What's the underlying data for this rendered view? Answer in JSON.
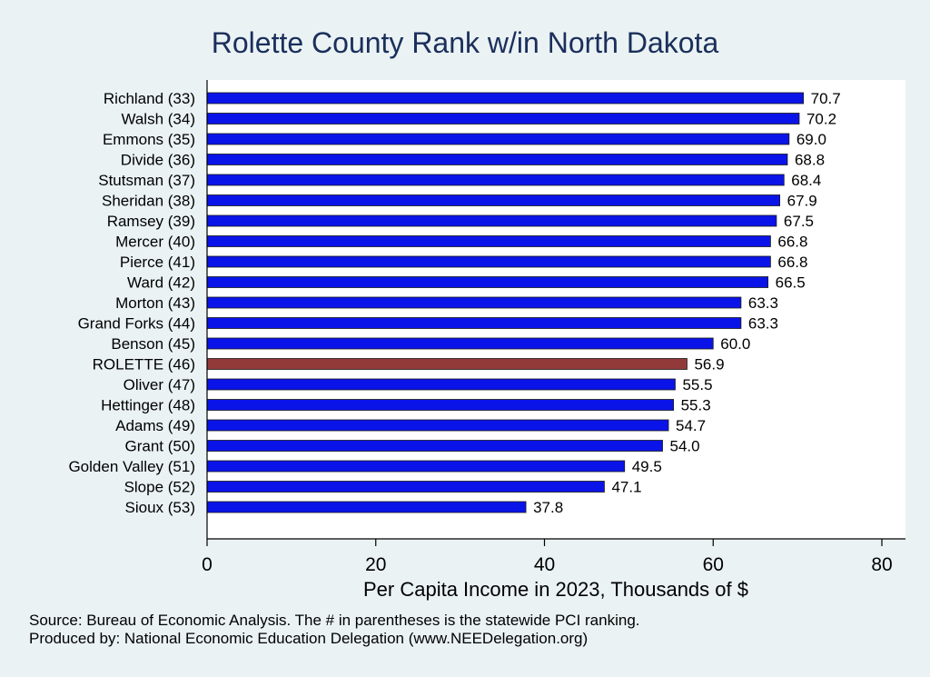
{
  "chart_data": {
    "type": "bar",
    "orientation": "horizontal",
    "title": "Rolette County Rank w/in North Dakota",
    "xlabel": "Per Capita Income in 2023, Thousands of $",
    "xlim": [
      0,
      80
    ],
    "xticks": [
      0,
      20,
      40,
      60,
      80
    ],
    "grid": false,
    "categories": [
      "Richland (33)",
      "Walsh (34)",
      "Emmons (35)",
      "Divide (36)",
      "Stutsman (37)",
      "Sheridan (38)",
      "Ramsey (39)",
      "Mercer (40)",
      "Pierce (41)",
      "Ward (42)",
      "Morton (43)",
      "Grand Forks (44)",
      "Benson (45)",
      "ROLETTE (46)",
      "Oliver (47)",
      "Hettinger (48)",
      "Adams (49)",
      "Grant (50)",
      "Golden Valley (51)",
      "Slope (52)",
      "Sioux (53)"
    ],
    "values": [
      70.7,
      70.2,
      69.0,
      68.8,
      68.4,
      67.9,
      67.5,
      66.8,
      66.8,
      66.5,
      63.3,
      63.3,
      60.0,
      56.9,
      55.5,
      55.3,
      54.7,
      54.0,
      49.5,
      47.1,
      37.8
    ],
    "value_labels": [
      "70.7",
      "70.2",
      "69.0",
      "68.8",
      "68.4",
      "67.9",
      "67.5",
      "66.8",
      "66.8",
      "66.5",
      "63.3",
      "63.3",
      "60.0",
      "56.9",
      "55.5",
      "55.3",
      "54.7",
      "54.0",
      "49.5",
      "47.1",
      "37.8"
    ],
    "highlight_category": "ROLETTE (46)",
    "colors": {
      "bar": "#0a14e8",
      "highlight": "#923a3a",
      "bar_outline": "#1a1a1a",
      "background": "#eaf2f3",
      "plot_background": "#ffffff",
      "title": "#1b2f5c"
    }
  },
  "notes": {
    "source": "Source: Bureau of Economic Analysis. The # in parentheses is the statewide PCI ranking.",
    "produced_by": "Produced by: National Economic Education Delegation (www.NEEDelegation.org)"
  }
}
